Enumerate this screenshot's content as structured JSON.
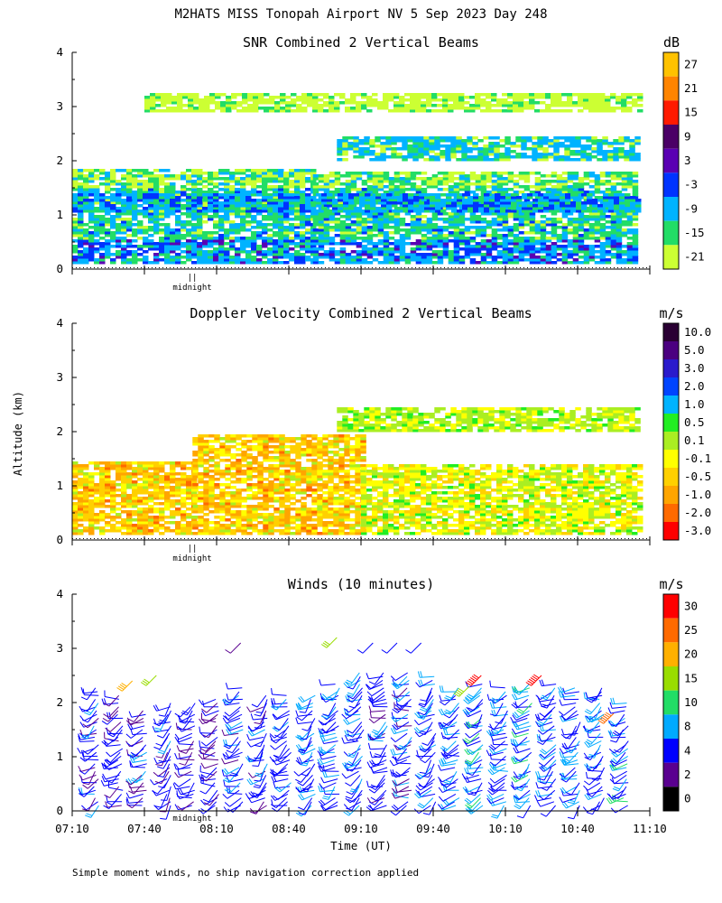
{
  "figure": {
    "title": "M2HATS MISS Tonopah Airport NV   5 Sep 2023 Day 248",
    "ylabel": "Altitude (km)",
    "xlabel": "Time (UT)",
    "midnight_label": "midnight",
    "midnight_marker": "||",
    "footnote": "Simple moment winds, no ship navigation correction applied"
  },
  "chart_data": [
    {
      "type": "heatmap",
      "title": "SNR Combined 2 Vertical Beams",
      "unit": "dB",
      "ylim": [
        0,
        4
      ],
      "yticks": [
        "0",
        "1",
        "2",
        "3",
        "4"
      ],
      "x_tick_labels_shown": false,
      "midnight_time": "07:50",
      "colorbar": {
        "labels": [
          "27",
          "21",
          "15",
          "9",
          "3",
          "-3",
          "-9",
          "-15",
          "-21"
        ],
        "colors": [
          "#ffc200",
          "#ff8400",
          "#ff1a00",
          "#4b0066",
          "#5a00b3",
          "#0033ff",
          "#00b3ff",
          "#22dd66",
          "#ccff33"
        ]
      },
      "layers": [
        {
          "start": "07:10",
          "end": "08:50",
          "bottom_km": 0.1,
          "top_km": 1.85,
          "level": "-15 to -9"
        },
        {
          "start": "08:50",
          "end": "11:05",
          "bottom_km": 0.1,
          "top_km": 1.8,
          "level": "-15 to -9"
        },
        {
          "start": "07:10",
          "end": "11:05",
          "bottom_km": 1.05,
          "top_km": 1.4,
          "level": "-9 to -3"
        },
        {
          "start": "09:00",
          "end": "11:05",
          "bottom_km": 2.0,
          "top_km": 2.4,
          "level": "-9"
        },
        {
          "start": "07:40",
          "end": "11:05",
          "bottom_km": 2.9,
          "top_km": 3.2,
          "level": "-21"
        }
      ]
    },
    {
      "type": "heatmap",
      "title": "Doppler Velocity Combined 2 Vertical Beams",
      "unit": "m/s",
      "ylim": [
        0,
        4
      ],
      "yticks": [
        "0",
        "1",
        "2",
        "3",
        "4"
      ],
      "x_tick_labels_shown": false,
      "midnight_time": "07:50",
      "colorbar": {
        "labels": [
          "10.0",
          "5.0",
          "3.0",
          "2.0",
          "1.0",
          "0.5",
          "0.1",
          "-0.1",
          "-0.5",
          "-1.0",
          "-2.0",
          "-3.0"
        ],
        "colors": [
          "#2a0033",
          "#4b0080",
          "#2a1acc",
          "#0044ff",
          "#00b3ff",
          "#22ee22",
          "#aaee22",
          "#ffff00",
          "#ffd000",
          "#ffa500",
          "#ff6a00",
          "#ff0000"
        ]
      },
      "layers": [
        {
          "start": "07:10",
          "end": "08:00",
          "bottom_km": 0.1,
          "top_km": 1.45,
          "level": "-0.5 to -1.0"
        },
        {
          "start": "08:00",
          "end": "09:10",
          "bottom_km": 0.1,
          "top_km": 1.95,
          "level": "-0.5 to -1.0"
        },
        {
          "start": "09:10",
          "end": "11:05",
          "bottom_km": 0.1,
          "top_km": 1.4,
          "level": "-0.1 to 0.1"
        },
        {
          "start": "09:00",
          "end": "11:05",
          "bottom_km": 2.0,
          "top_km": 2.4,
          "level": "0.1"
        }
      ]
    },
    {
      "type": "scatter",
      "title": "Winds (10 minutes)",
      "unit": "m/s",
      "ylim": [
        0,
        4
      ],
      "yticks": [
        "0",
        "1",
        "2",
        "3",
        "4"
      ],
      "x_ticks": [
        "07:10",
        "07:40",
        "08:10",
        "08:40",
        "09:10",
        "09:40",
        "10:10",
        "10:40",
        "11:10"
      ],
      "midnight_time": "07:50",
      "profile_interval_minutes": 10,
      "colorbar": {
        "labels": [
          "30",
          "25",
          "20",
          "15",
          "10",
          "8",
          "4",
          "2",
          "0"
        ],
        "colors": [
          "#ff0000",
          "#ff6a00",
          "#ffb000",
          "#99dd00",
          "#22dd66",
          "#00aaff",
          "#0000ff",
          "#5a0090",
          "#000000"
        ]
      },
      "wind_profiles": [
        {
          "time": "07:20",
          "top_km": 2.3,
          "speed_ms": 6,
          "dir_deg": 240
        },
        {
          "time": "07:30",
          "top_km": 2.2,
          "speed_ms": 5,
          "dir_deg": 250
        },
        {
          "time": "07:40",
          "top_km": 1.9,
          "speed_ms": 6,
          "dir_deg": 240
        },
        {
          "time": "07:50",
          "top_km": 2.0,
          "speed_ms": 6,
          "dir_deg": 230
        },
        {
          "time": "08:00",
          "top_km": 2.0,
          "speed_ms": 5,
          "dir_deg": 240
        },
        {
          "time": "08:10",
          "top_km": 2.1,
          "speed_ms": 5,
          "dir_deg": 250
        },
        {
          "time": "08:20",
          "top_km": 2.3,
          "speed_ms": 6,
          "dir_deg": 240
        },
        {
          "time": "08:30",
          "top_km": 2.2,
          "speed_ms": 6,
          "dir_deg": 230
        },
        {
          "time": "08:40",
          "top_km": 2.2,
          "speed_ms": 7,
          "dir_deg": 240
        },
        {
          "time": "08:50",
          "top_km": 2.2,
          "speed_ms": 7,
          "dir_deg": 235
        },
        {
          "time": "09:00",
          "top_km": 2.4,
          "speed_ms": 7,
          "dir_deg": 240
        },
        {
          "time": "09:10",
          "top_km": 2.6,
          "speed_ms": 7,
          "dir_deg": 235
        },
        {
          "time": "09:20",
          "top_km": 2.6,
          "speed_ms": 6,
          "dir_deg": 240
        },
        {
          "time": "09:30",
          "top_km": 2.6,
          "speed_ms": 6,
          "dir_deg": 245
        },
        {
          "time": "09:40",
          "top_km": 2.5,
          "speed_ms": 7,
          "dir_deg": 235
        },
        {
          "time": "09:50",
          "top_km": 2.3,
          "speed_ms": 7,
          "dir_deg": 240
        },
        {
          "time": "10:00",
          "top_km": 2.4,
          "speed_ms": 8,
          "dir_deg": 235
        },
        {
          "time": "10:10",
          "top_km": 2.3,
          "speed_ms": 7,
          "dir_deg": 240
        },
        {
          "time": "10:20",
          "top_km": 2.4,
          "speed_ms": 8,
          "dir_deg": 235
        },
        {
          "time": "10:30",
          "top_km": 2.4,
          "speed_ms": 7,
          "dir_deg": 240
        },
        {
          "time": "10:40",
          "top_km": 2.3,
          "speed_ms": 7,
          "dir_deg": 235
        },
        {
          "time": "10:50",
          "top_km": 2.3,
          "speed_ms": 7,
          "dir_deg": 240
        },
        {
          "time": "11:00",
          "top_km": 2.0,
          "speed_ms": 8,
          "dir_deg": 240
        }
      ],
      "upper_barbs": [
        {
          "time": "08:20",
          "alt_km": 3.1,
          "speed_ms": 3
        },
        {
          "time": "07:45",
          "alt_km": 2.5,
          "speed_ms": 15
        },
        {
          "time": "07:35",
          "alt_km": 2.4,
          "speed_ms": 20
        },
        {
          "time": "09:00",
          "alt_km": 3.2,
          "speed_ms": 15
        },
        {
          "time": "09:15",
          "alt_km": 3.1,
          "speed_ms": 5
        },
        {
          "time": "09:25",
          "alt_km": 3.1,
          "speed_ms": 6
        },
        {
          "time": "09:35",
          "alt_km": 3.1,
          "speed_ms": 6
        },
        {
          "time": "09:55",
          "alt_km": 2.3,
          "speed_ms": 18
        },
        {
          "time": "10:00",
          "alt_km": 2.5,
          "speed_ms": 30
        },
        {
          "time": "10:25",
          "alt_km": 2.5,
          "speed_ms": 30
        },
        {
          "time": "10:55",
          "alt_km": 1.8,
          "speed_ms": 28
        }
      ]
    }
  ]
}
